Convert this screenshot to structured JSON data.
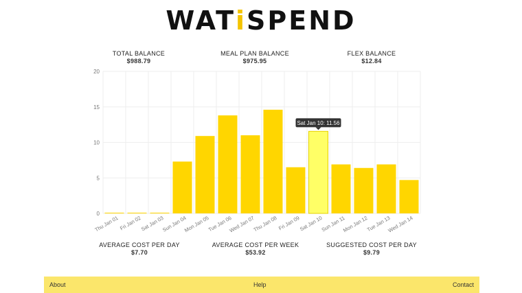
{
  "header": {
    "logo_part1": "WAT",
    "logo_accent": "i",
    "logo_part2": "SPEND"
  },
  "balances": {
    "total": {
      "label": "TOTAL BALANCE",
      "value": "$988.79"
    },
    "meal_plan": {
      "label": "MEAL PLAN BALANCE",
      "value": "$975.95"
    },
    "flex": {
      "label": "FLEX BALANCE",
      "value": "$12.84"
    }
  },
  "costs": {
    "avg_day": {
      "label": "AVERAGE COST PER DAY",
      "value": "$7.70"
    },
    "avg_week": {
      "label": "AVERAGE COST PER WEEK",
      "value": "$53.92"
    },
    "suggested": {
      "label": "SUGGESTED COST PER DAY",
      "value": "$9.79"
    }
  },
  "tooltip": {
    "text": "Sat Jan 10: 11.56",
    "index": 9
  },
  "colors": {
    "bar": "#ffd600",
    "bar_highlight": "#ffff66",
    "footer": "#fbe66b",
    "logo_accent": "#f4c400",
    "grid": "#eeeeee"
  },
  "chart_data": {
    "type": "bar",
    "categories": [
      "Thu Jan 01",
      "Fri Jan 02",
      "Sat Jan 03",
      "Sun Jan 04",
      "Mon Jan 05",
      "Tue Jan 06",
      "Wed Jan 07",
      "Thu Jan 08",
      "Fri Jan 09",
      "Sat Jan 10",
      "Sun Jan 11",
      "Mon Jan 12",
      "Tue Jan 13",
      "Wed Jan 14"
    ],
    "values": [
      0.1,
      0.1,
      0.1,
      7.3,
      10.9,
      13.8,
      11.0,
      14.6,
      6.5,
      11.56,
      6.9,
      6.4,
      6.9,
      4.7
    ],
    "yticks": [
      0,
      5,
      10,
      15,
      20
    ],
    "ylim": [
      0,
      20
    ],
    "grid": true
  },
  "footer": {
    "about": "About",
    "help": "Help",
    "contact": "Contact"
  }
}
